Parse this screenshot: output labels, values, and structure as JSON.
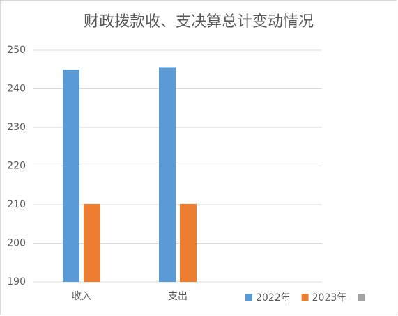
{
  "chart_data": {
    "type": "bar",
    "title": "财政拨款收、支决算总计变动情况",
    "categories": [
      "收入",
      "支出",
      null
    ],
    "series": [
      {
        "name": "2022年",
        "color": "#5b9bd5",
        "values": [
          244.9,
          245.6,
          null
        ]
      },
      {
        "name": "2023年",
        "color": "#ed7d31",
        "values": [
          210.2,
          210.2,
          null
        ]
      },
      {
        "name": null,
        "color": "#a5a5a5",
        "values": [
          null,
          null,
          null
        ]
      }
    ],
    "ylim": [
      190,
      250
    ],
    "yticks": [
      190,
      200,
      210,
      220,
      230,
      240,
      250
    ],
    "grid": true,
    "legend": "bottom-right"
  }
}
